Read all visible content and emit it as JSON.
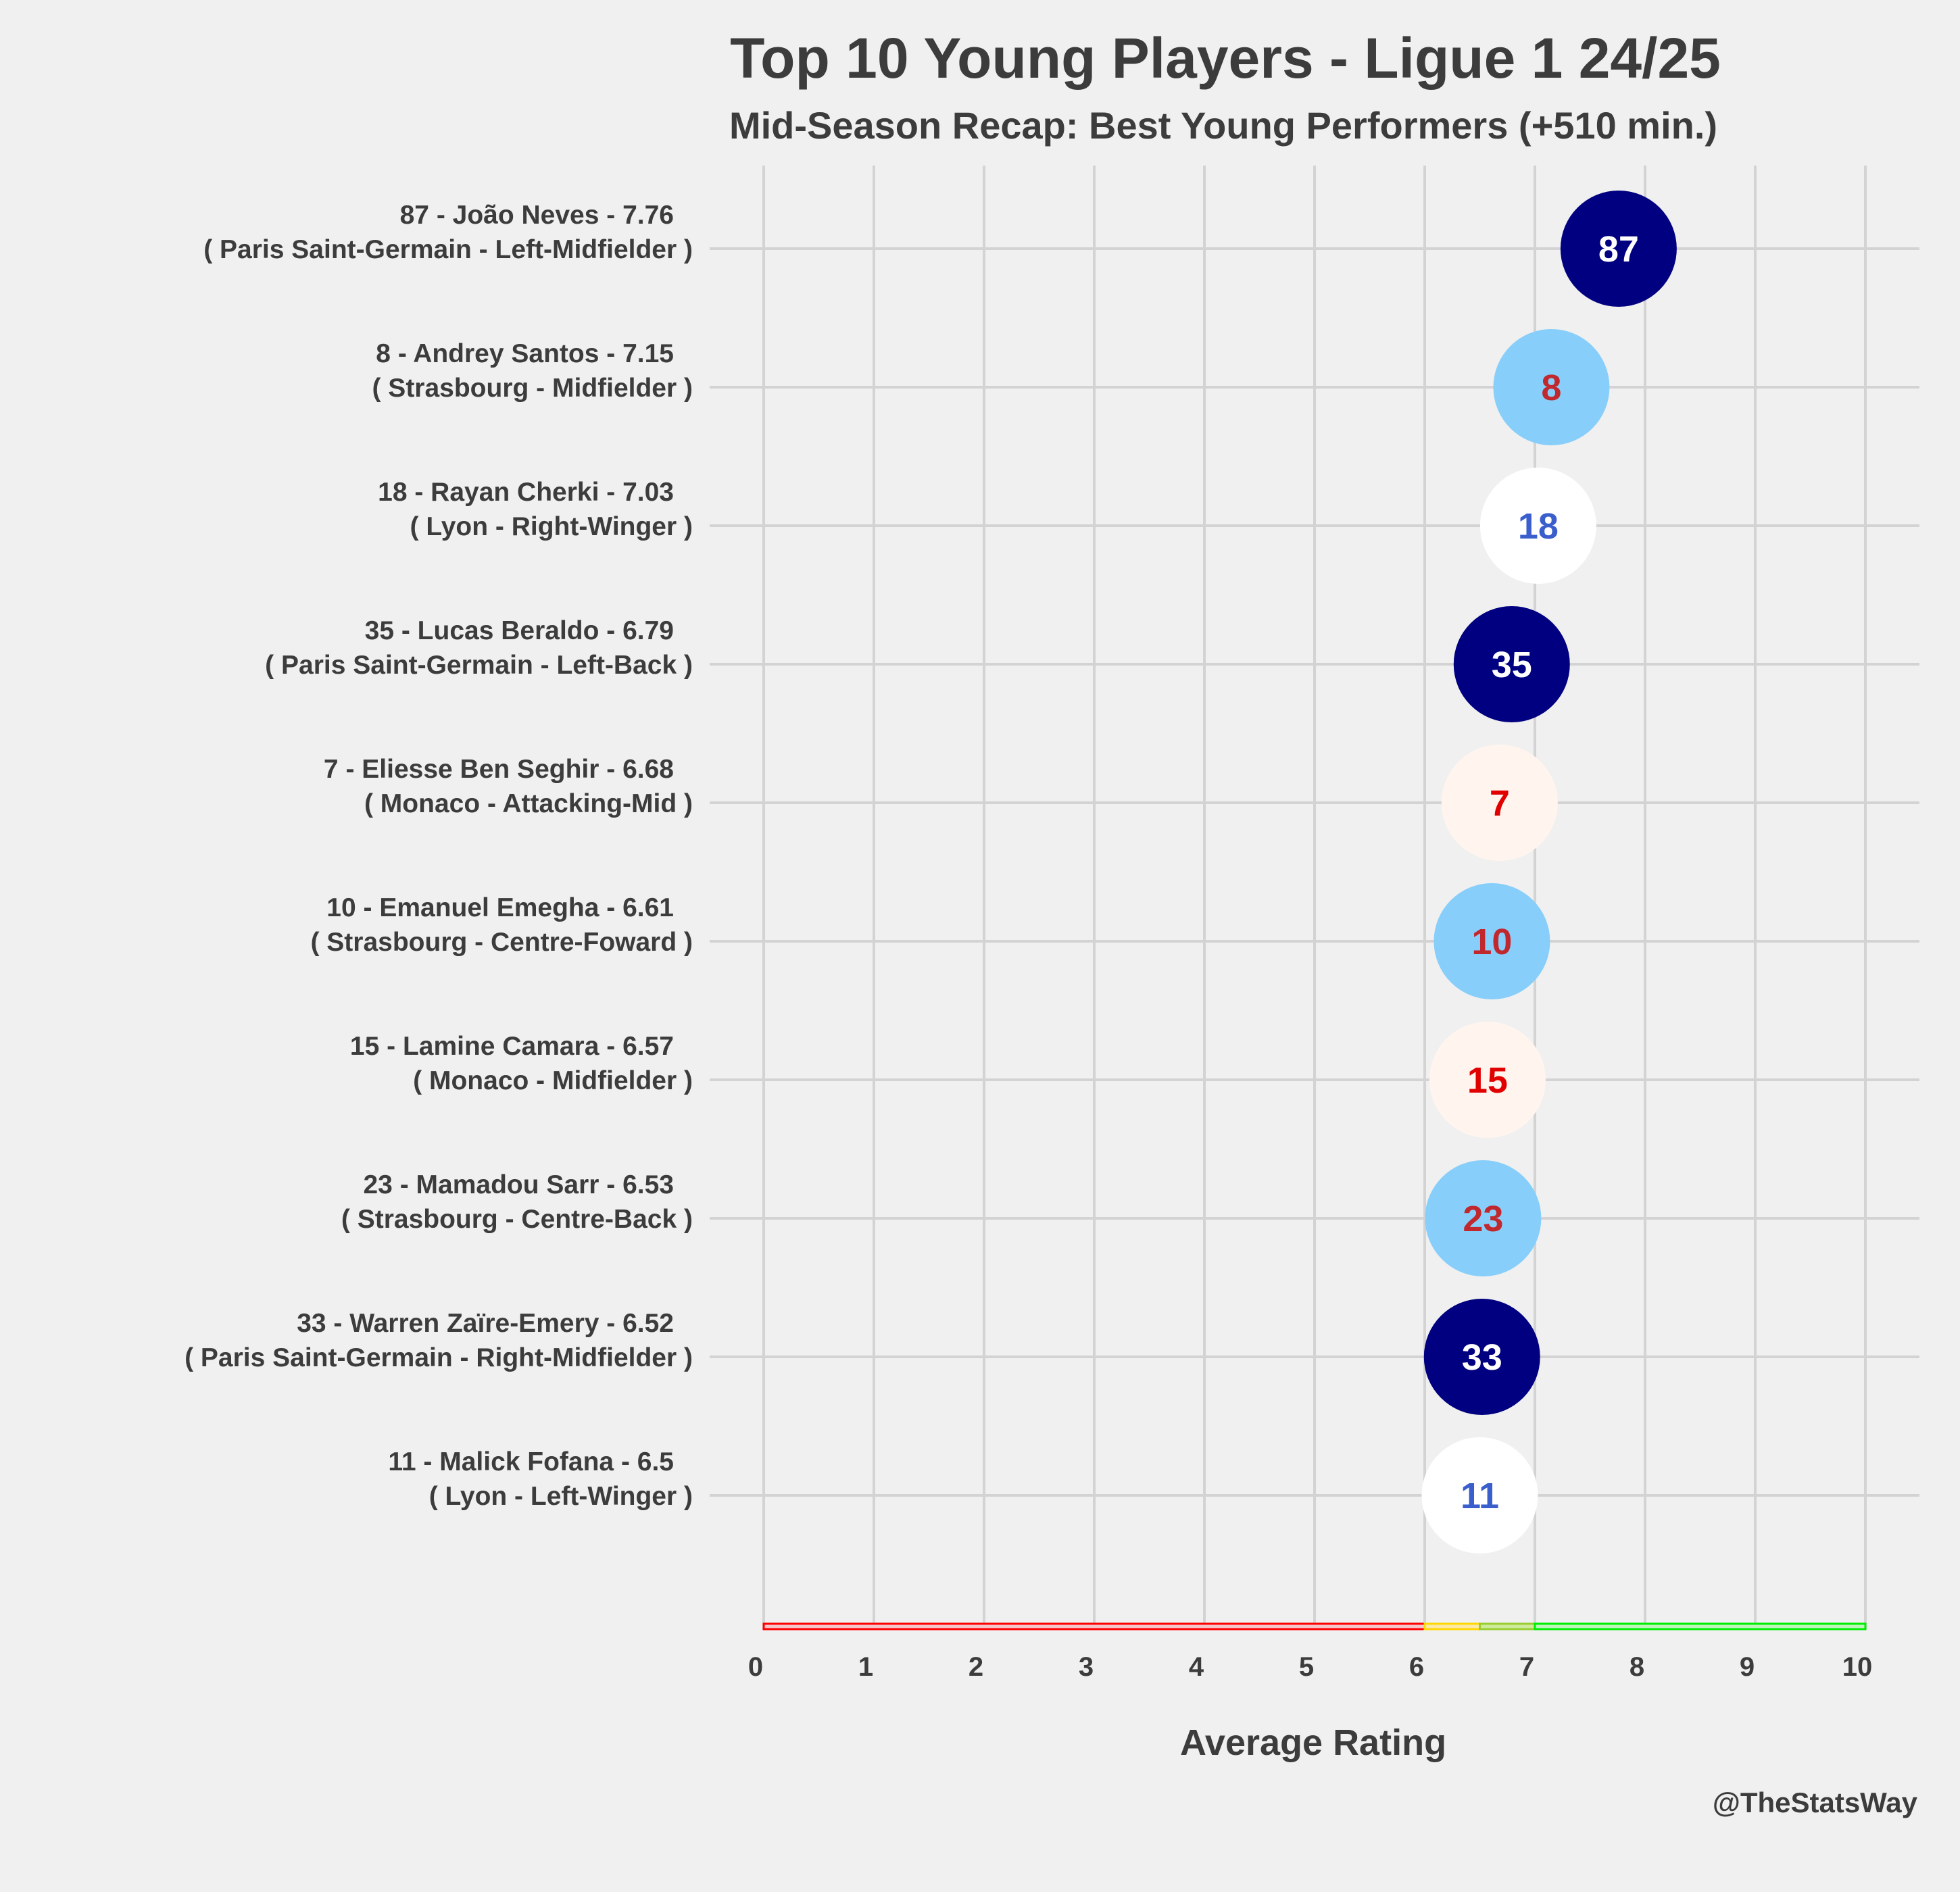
{
  "chart_data": {
    "type": "scatter",
    "title": "Top 10 Young Players - Ligue 1 24/25",
    "subtitle": "Mid-Season Recap: Best Young Performers (+510 min.)",
    "xlabel": "Average Rating",
    "ylabel": "",
    "xlim": [
      0,
      10
    ],
    "xticks": [
      "0",
      "1",
      "2",
      "3",
      "4",
      "5",
      "6",
      "7",
      "8",
      "9",
      "10"
    ],
    "grid": true,
    "credit": "@TheStatsWay",
    "rating_bands": [
      {
        "from": 0,
        "to": 6,
        "color": "#ff0000",
        "fill": "#f5c6cb"
      },
      {
        "from": 6,
        "to": 6.5,
        "color": "#ffd700",
        "fill": "#fde9a6"
      },
      {
        "from": 6.5,
        "to": 7,
        "color": "#9acd32",
        "fill": "#cdeb9b"
      },
      {
        "from": 7,
        "to": 10,
        "color": "#00ee00",
        "fill": "#bdf5bd"
      }
    ],
    "players": [
      {
        "line1": "87 - João Neves - 7.76",
        "line2": "( Paris Saint-Germain - Left-Midfielder )",
        "number": "87",
        "rating": 7.76,
        "fill": "#000080",
        "text_color": "#ffffff"
      },
      {
        "line1": "8 - Andrey Santos - 7.15",
        "line2": "( Strasbourg - Midfielder )",
        "number": "8",
        "rating": 7.15,
        "fill": "#87cefa",
        "text_color": "#c0282e"
      },
      {
        "line1": "18 - Rayan Cherki - 7.03",
        "line2": "( Lyon - Right-Winger )",
        "number": "18",
        "rating": 7.03,
        "fill": "#ffffff",
        "text_color": "#3a5fcd"
      },
      {
        "line1": "35 - Lucas Beraldo - 6.79",
        "line2": "( Paris Saint-Germain - Left-Back )",
        "number": "35",
        "rating": 6.79,
        "fill": "#000080",
        "text_color": "#ffffff"
      },
      {
        "line1": "7 - Eliesse Ben Seghir - 6.68",
        "line2": "( Monaco - Attacking-Mid )",
        "number": "7",
        "rating": 6.68,
        "fill": "#fff5ee",
        "text_color": "#e00000"
      },
      {
        "line1": "10 - Emanuel Emegha - 6.61",
        "line2": "( Strasbourg - Centre-Foward )",
        "number": "10",
        "rating": 6.61,
        "fill": "#87cefa",
        "text_color": "#c0282e"
      },
      {
        "line1": "15 - Lamine Camara - 6.57",
        "line2": "( Monaco - Midfielder )",
        "number": "15",
        "rating": 6.57,
        "fill": "#fff5ee",
        "text_color": "#e00000"
      },
      {
        "line1": "23 - Mamadou Sarr - 6.53",
        "line2": "( Strasbourg - Centre-Back )",
        "number": "23",
        "rating": 6.53,
        "fill": "#87cefa",
        "text_color": "#c0282e"
      },
      {
        "line1": "33 - Warren Zaïre-Emery - 6.52",
        "line2": "( Paris Saint-Germain - Right-Midfielder )",
        "number": "33",
        "rating": 6.52,
        "fill": "#000080",
        "text_color": "#ffffff"
      },
      {
        "line1": "11 - Malick Fofana - 6.5",
        "line2": "( Lyon - Left-Winger )",
        "number": "11",
        "rating": 6.5,
        "fill": "#ffffff",
        "text_color": "#3a5fcd"
      }
    ]
  }
}
